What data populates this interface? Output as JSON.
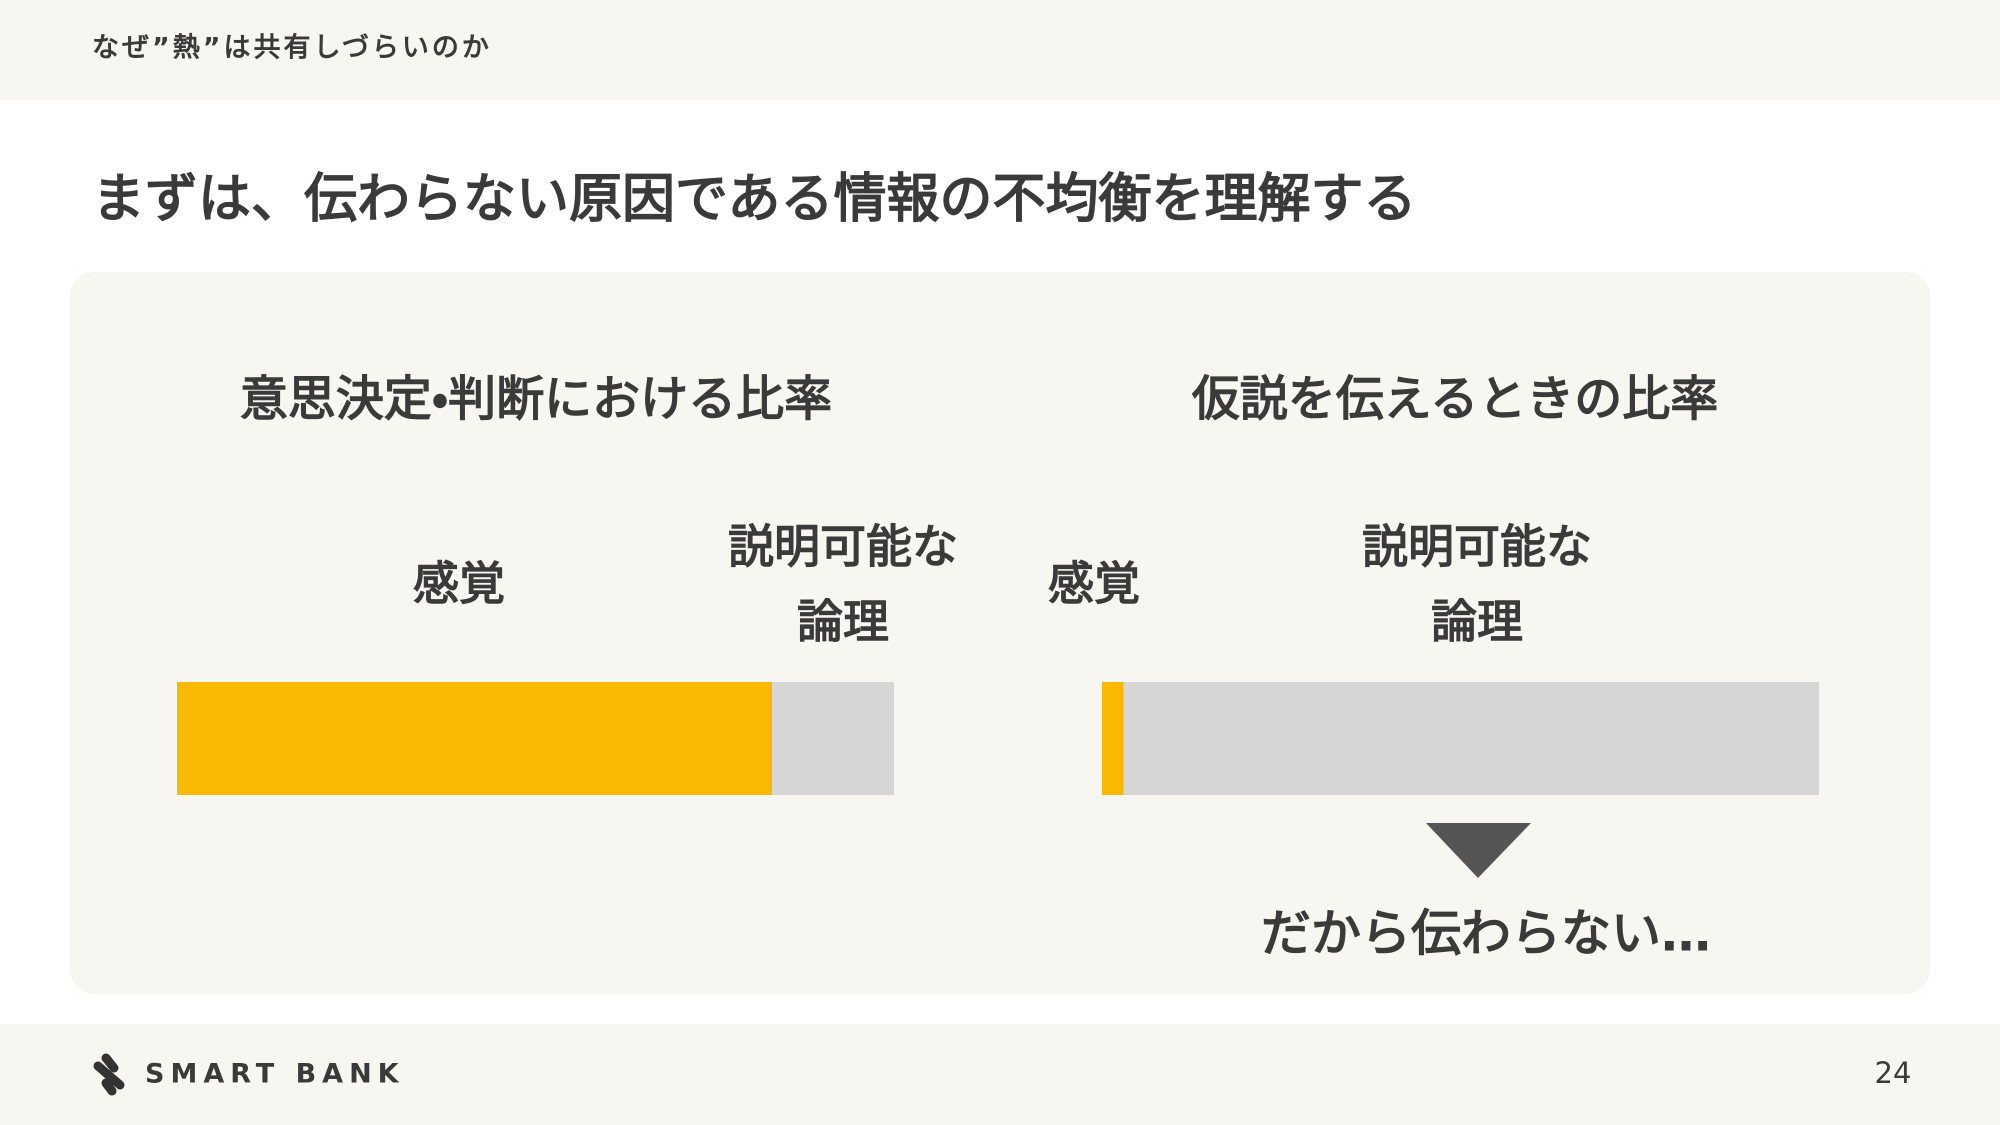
{
  "header": {
    "text": "なぜ”熱”は共有しづらいのか"
  },
  "title": "まずは、伝わらない原因である情報の不均衡を理解する",
  "chart_data": [
    {
      "type": "bar",
      "title": "意思決定・判断における比率",
      "series": [
        {
          "name": "感覚",
          "color": "#f8b900",
          "values": [
            83
          ]
        },
        {
          "name": "説明可能な\n論理",
          "color": "#d6d6d6",
          "values": [
            17
          ]
        }
      ]
    },
    {
      "type": "bar",
      "title": "仮説を伝えるときの比率",
      "series": [
        {
          "name": "感覚",
          "color": "#f8b900",
          "values": [
            3
          ]
        },
        {
          "name": "説明可能な\n論理",
          "color": "#d6d6d6",
          "values": [
            97
          ]
        }
      ]
    }
  ],
  "conclusion": "だから伝わらない…",
  "footer": {
    "logo": "SMART BANK",
    "page_number": "24"
  }
}
